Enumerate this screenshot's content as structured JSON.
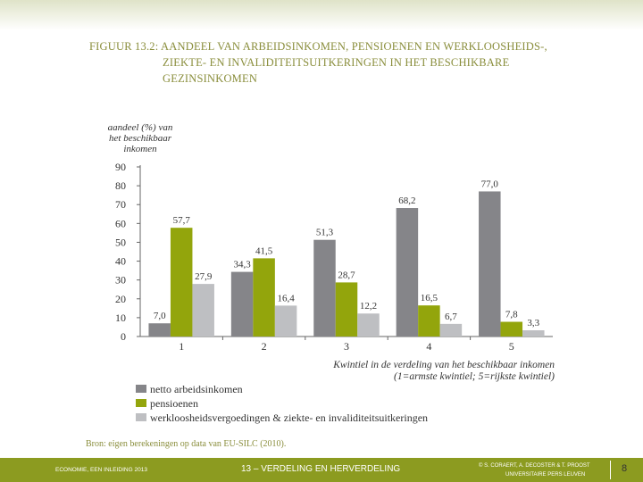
{
  "colors": {
    "arbeid": "#858589",
    "pensioen": "#93a50c",
    "werkloos": "#bebfc2",
    "title": "#8a8e3c",
    "footer": "#8c9b20",
    "axis": "#333333"
  },
  "figure": {
    "title_line1": "FIGUUR 13.2: AANDEEL VAN ARBEIDSINKOMEN, PENSIOENEN EN WERKLOOSHEIDS-,",
    "title_line2": "ZIEKTE- EN INVALIDITEITSUITKERINGEN IN HET BESCHIKBARE",
    "title_line3": "GEZINSINKOMEN",
    "source": "Bron: eigen berekeningen op data van EU-SILC (2010)."
  },
  "chart_data": {
    "type": "bar",
    "ylabel_lines": [
      "aandeel (%) van",
      "het beschikbaar",
      "inkomen"
    ],
    "xlabel_lines": [
      "Kwintiel in de verdeling van het beschikbaar inkomen",
      "(1=armste kwintiel; 5=rijkste kwintiel)"
    ],
    "ylim": [
      0,
      90
    ],
    "yticks": [
      0,
      10,
      20,
      30,
      40,
      50,
      60,
      70,
      80,
      90
    ],
    "categories": [
      "1",
      "2",
      "3",
      "4",
      "5"
    ],
    "series": [
      {
        "name": "netto arbeidsinkomen",
        "values": [
          7.0,
          34.3,
          51.3,
          68.2,
          77.0
        ],
        "labels": [
          "7,0",
          "34,3",
          "51,3",
          "68,2",
          "77,0"
        ]
      },
      {
        "name": "pensioenen",
        "values": [
          57.7,
          41.5,
          28.7,
          16.5,
          7.8
        ],
        "labels": [
          "57,7",
          "41,5",
          "28,7",
          "16,5",
          "7,8"
        ]
      },
      {
        "name": "werkloosheidsvergoedingen & ziekte- en invaliditeitsuitkeringen",
        "values": [
          27.9,
          16.4,
          12.2,
          6.7,
          3.3
        ],
        "labels": [
          "27,9",
          "16,4",
          "12,2",
          "6,7",
          "3,3"
        ]
      }
    ],
    "legend_position": "bottom-left"
  },
  "footer": {
    "left": "ECONOMIE, EEN INLEIDING 2013",
    "center": "13 – VERDELING EN HERVERDELING",
    "right_line1": "© S. CORAERT, A. DECOSTER & T. PROOST",
    "right_line2": "UNIVERSITAIRE PERS LEUVEN",
    "page": "8"
  }
}
